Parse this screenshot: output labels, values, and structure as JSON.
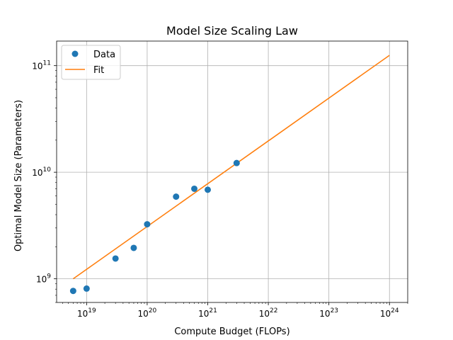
{
  "chart_data": {
    "type": "scatter",
    "title": "Model Size Scaling Law",
    "xlabel": "Compute Budget (FLOPs)",
    "ylabel": "Optimal Model Size (Parameters)",
    "xscale": "log",
    "yscale": "log",
    "xlim": [
      3.2e+18,
      2e+24
    ],
    "ylim": [
      600000000.0,
      170000000000.0
    ],
    "grid": true,
    "legend_placement": "top-left",
    "x_ticks": [
      {
        "value": 1e+19,
        "base": "10",
        "exp": "19"
      },
      {
        "value": 1e+20,
        "base": "10",
        "exp": "20"
      },
      {
        "value": 1e+21,
        "base": "10",
        "exp": "21"
      },
      {
        "value": 1e+22,
        "base": "10",
        "exp": "22"
      },
      {
        "value": 1e+23,
        "base": "10",
        "exp": "23"
      },
      {
        "value": 1e+24,
        "base": "10",
        "exp": "24"
      }
    ],
    "y_ticks": [
      {
        "value": 1000000000.0,
        "base": "10",
        "exp": "9"
      },
      {
        "value": 10000000000.0,
        "base": "10",
        "exp": "10"
      },
      {
        "value": 100000000000.0,
        "base": "10",
        "exp": "11"
      }
    ],
    "series": [
      {
        "name": "Data",
        "kind": "scatter",
        "color": "#1f77b4",
        "x": [
          6e+18,
          1e+19,
          3e+19,
          6e+19,
          1e+20,
          3e+20,
          6e+20,
          1e+21,
          3e+21
        ],
        "y": [
          770000000.0,
          810000000.0,
          1550000000.0,
          1950000000.0,
          3250000000.0,
          5900000000.0,
          7000000000.0,
          6850000000.0,
          12200000000.0
        ]
      },
      {
        "name": "Fit",
        "kind": "line",
        "color": "#ff7f0e",
        "x": [
          6e+18,
          1e+24
        ],
        "y": [
          1000000000.0,
          125000000000.0
        ]
      }
    ]
  }
}
